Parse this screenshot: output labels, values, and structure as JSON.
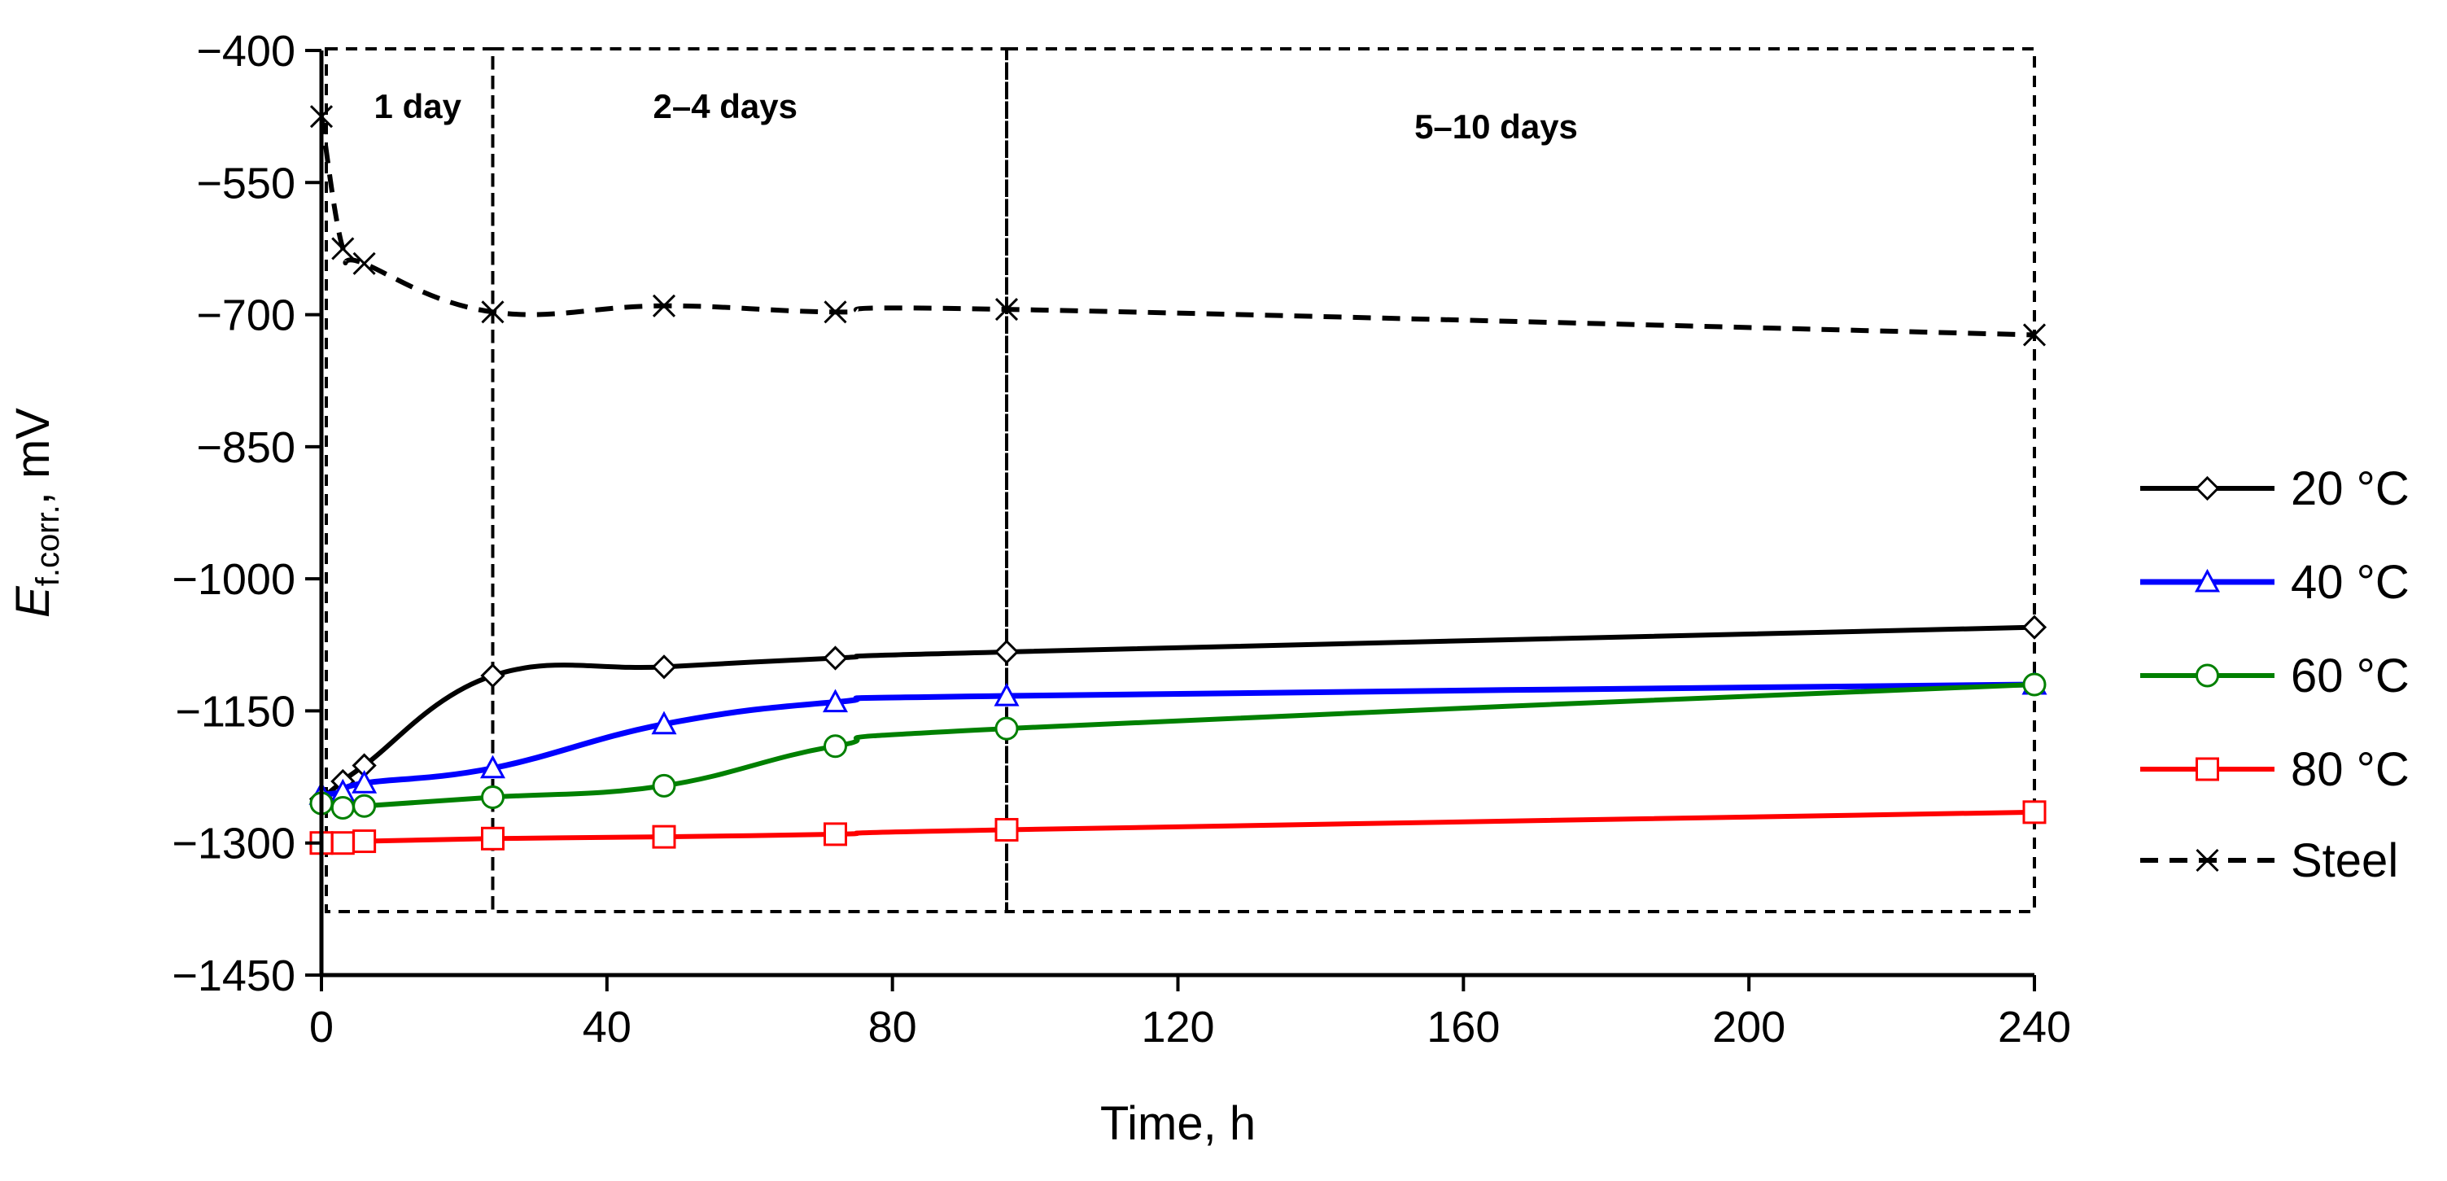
{
  "chart_data": {
    "type": "line",
    "title": "",
    "xlabel": "Time, h",
    "ylabel": {
      "symbol": "E",
      "subscript": "f.corr.",
      "unit": ", mV"
    },
    "xlim": [
      0,
      240
    ],
    "ylim": [
      -1450,
      -400
    ],
    "xticks": [
      0,
      40,
      80,
      120,
      160,
      200,
      240
    ],
    "yticks": [
      -400,
      -550,
      -700,
      -850,
      -1000,
      -1150,
      -1300,
      -1450
    ],
    "ytick_labels": [
      "−400",
      "−550",
      "−700",
      "−850",
      "−1000",
      "−1150",
      "−1300",
      "−1450"
    ],
    "legend_position": "right",
    "series": [
      {
        "name": "20 °C",
        "color": "#000000",
        "dash": "solid",
        "marker": "diamond",
        "x": [
          0,
          3,
          6,
          24,
          48,
          72,
          96,
          240
        ],
        "y": [
          -1250,
          -1230,
          -1212,
          -1110,
          -1100,
          -1090,
          -1083,
          -1055
        ]
      },
      {
        "name": "40 °C",
        "color": "#0000ff",
        "dash": "solid",
        "marker": "triangle",
        "x": [
          0,
          3,
          6,
          24,
          48,
          72,
          96,
          240
        ],
        "y": [
          -1245,
          -1242,
          -1232,
          -1215,
          -1165,
          -1140,
          -1133,
          -1120
        ]
      },
      {
        "name": "60 °C",
        "color": "#008000",
        "dash": "solid",
        "marker": "circle",
        "x": [
          0,
          3,
          6,
          24,
          48,
          72,
          96,
          240
        ],
        "y": [
          -1255,
          -1260,
          -1258,
          -1248,
          -1235,
          -1190,
          -1170,
          -1120
        ]
      },
      {
        "name": "80 °C",
        "color": "#ff0000",
        "dash": "solid",
        "marker": "square",
        "x": [
          0,
          3,
          6,
          24,
          48,
          72,
          96,
          240
        ],
        "y": [
          -1300,
          -1300,
          -1298,
          -1295,
          -1293,
          -1290,
          -1285,
          -1265
        ]
      },
      {
        "name": "Steel",
        "color": "#000000",
        "dash": "dashed",
        "marker": "x",
        "x": [
          0,
          3,
          6,
          24,
          48,
          72,
          96,
          240
        ],
        "y": [
          -475,
          -625,
          -642,
          -697,
          -690,
          -697,
          -694,
          -723
        ]
      }
    ],
    "periods": [
      {
        "label": "1 day",
        "x_start": 0,
        "x_end": 24
      },
      {
        "label": "2–4 days",
        "x_start": 24,
        "x_end": 96
      },
      {
        "label": "5–10 days",
        "x_start": 96,
        "x_end": 240
      }
    ]
  }
}
